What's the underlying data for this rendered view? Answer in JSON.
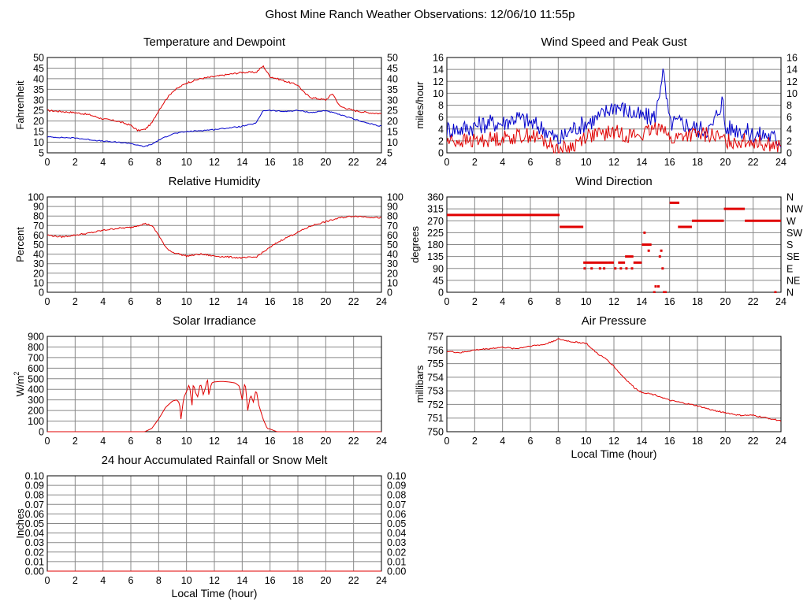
{
  "page_title": "Ghost Mine Ranch Weather Observations: 12/06/10 11:55p",
  "colors": {
    "red": "#e00000",
    "blue": "#0000cc",
    "grid": "#888888"
  },
  "chart_data": [
    {
      "id": "temp",
      "type": "line",
      "title": "Temperature and Dewpoint",
      "ylabel": "Fahrenheit",
      "xlabel": "",
      "xlim": [
        0,
        24
      ],
      "ylim": [
        5,
        50
      ],
      "xticks": [
        0,
        2,
        4,
        6,
        8,
        10,
        12,
        14,
        16,
        18,
        20,
        22,
        24
      ],
      "yticks": [
        5,
        10,
        15,
        20,
        25,
        30,
        35,
        40,
        45,
        50
      ],
      "right_ticks": [
        "5",
        "10",
        "15",
        "20",
        "25",
        "30",
        "35",
        "40",
        "45",
        "50"
      ],
      "grid": true,
      "series": [
        {
          "color": "red",
          "noise": 0.4,
          "x": [
            0,
            1,
            2,
            3,
            4,
            5,
            6,
            6.5,
            7,
            7.5,
            8,
            8.5,
            9,
            9.5,
            10,
            11,
            12,
            13,
            14,
            15,
            15.5,
            16,
            17,
            18,
            18.5,
            19,
            20,
            20.5,
            21,
            22,
            23,
            24
          ],
          "y": [
            25,
            24.5,
            24,
            23,
            21,
            20,
            18,
            15.5,
            16,
            19,
            25,
            30,
            34,
            36,
            38,
            40,
            41,
            42,
            43,
            43,
            46,
            41,
            39,
            37,
            33,
            31,
            30,
            33,
            27,
            25,
            24,
            23.5
          ]
        },
        {
          "color": "blue",
          "noise": 0.25,
          "x": [
            0,
            2,
            4,
            5,
            6,
            6.5,
            7,
            7.5,
            8,
            9,
            10,
            12,
            14,
            15,
            15.5,
            16,
            17,
            18,
            19,
            20,
            21,
            22,
            23,
            24
          ],
          "y": [
            12.5,
            12,
            10.5,
            10,
            9.5,
            8.5,
            8,
            9,
            11,
            14,
            15,
            16,
            17.5,
            19,
            25,
            25,
            24.5,
            25,
            24,
            25,
            23,
            21,
            19,
            17.5
          ]
        }
      ]
    },
    {
      "id": "wind",
      "type": "line",
      "title": "Wind Speed and Peak Gust",
      "ylabel": "miles/hour",
      "xlabel": "",
      "xlim": [
        0,
        24
      ],
      "ylim": [
        0,
        16
      ],
      "xticks": [
        0,
        2,
        4,
        6,
        8,
        10,
        12,
        14,
        16,
        18,
        20,
        22,
        24
      ],
      "yticks": [
        0,
        2,
        4,
        6,
        8,
        10,
        12,
        14,
        16
      ],
      "right_ticks": [
        "0",
        "2",
        "4",
        "6",
        "8",
        "10",
        "12",
        "14",
        "16"
      ],
      "grid": true,
      "series": [
        {
          "color": "blue",
          "noise": 1.6,
          "x": [
            0,
            1,
            2,
            3,
            4,
            5,
            6,
            7,
            8,
            8.5,
            9,
            10,
            11,
            12,
            13,
            14,
            15,
            15.5,
            16,
            17,
            18,
            19,
            19.8,
            20,
            21,
            22,
            23,
            24
          ],
          "y": [
            4,
            4,
            4.5,
            5,
            5,
            6,
            5,
            4,
            2,
            3,
            4,
            5,
            6,
            8,
            7,
            6,
            6,
            14,
            5,
            5,
            4,
            4,
            9,
            4,
            4,
            3,
            3,
            2
          ]
        },
        {
          "color": "red",
          "noise": 1.3,
          "x": [
            0,
            2,
            4,
            6,
            7,
            8,
            9,
            10,
            11,
            12,
            13,
            14,
            15,
            15.5,
            16,
            17,
            18,
            19,
            20,
            21,
            22,
            23,
            24
          ],
          "y": [
            2,
            2,
            2.5,
            3,
            2,
            0.5,
            1,
            3,
            3,
            3.5,
            3,
            3,
            4,
            5,
            2,
            3,
            3,
            3,
            2,
            2,
            2,
            1.5,
            1
          ]
        }
      ]
    },
    {
      "id": "rh",
      "type": "line",
      "title": "Relative Humidity",
      "ylabel": "Percent",
      "xlabel": "",
      "xlim": [
        0,
        24
      ],
      "ylim": [
        0,
        100
      ],
      "xticks": [
        0,
        2,
        4,
        6,
        8,
        10,
        12,
        14,
        16,
        18,
        20,
        22,
        24
      ],
      "yticks": [
        0,
        10,
        20,
        30,
        40,
        50,
        60,
        70,
        80,
        90,
        100
      ],
      "right_ticks": [
        "0",
        "10",
        "20",
        "30",
        "40",
        "50",
        "60",
        "70",
        "80",
        "90",
        "100"
      ],
      "grid": true,
      "series": [
        {
          "color": "red",
          "noise": 0.8,
          "x": [
            0,
            1,
            2,
            3,
            4,
            5,
            6,
            7,
            7.5,
            8,
            8.5,
            9,
            10,
            11,
            12,
            13,
            14,
            15,
            15.5,
            16,
            16.5,
            17,
            18,
            19,
            20,
            21,
            22,
            23,
            24
          ],
          "y": [
            60,
            58,
            60,
            62,
            65,
            67,
            68,
            72,
            70,
            60,
            47,
            42,
            38,
            40,
            38,
            37,
            36,
            37,
            42,
            47,
            52,
            56,
            63,
            70,
            74,
            78,
            80,
            79,
            78
          ]
        }
      ]
    },
    {
      "id": "winddir",
      "type": "scatter",
      "title": "Wind Direction",
      "ylabel": "degrees",
      "xlabel": "",
      "xlim": [
        0,
        24
      ],
      "ylim": [
        0,
        360
      ],
      "xticks": [
        0,
        2,
        4,
        6,
        8,
        10,
        12,
        14,
        16,
        18,
        20,
        22,
        24
      ],
      "yticks": [
        0,
        45,
        90,
        135,
        180,
        225,
        270,
        315,
        360
      ],
      "right_ticks": [
        "N",
        "NE",
        "E",
        "SE",
        "S",
        "SW",
        "W",
        "NW",
        "N"
      ],
      "grid": true,
      "segments": [
        [
          0,
          8.1,
          292
        ],
        [
          8.1,
          9.8,
          247
        ],
        [
          9.8,
          11.6,
          112
        ],
        [
          11.6,
          12.0,
          112
        ],
        [
          12.3,
          12.8,
          112
        ],
        [
          12.8,
          13.4,
          135
        ],
        [
          13.4,
          14.0,
          112
        ],
        [
          14.0,
          14.7,
          180
        ],
        [
          16.0,
          16.7,
          338
        ],
        [
          16.6,
          17.6,
          247
        ],
        [
          17.6,
          19.9,
          270
        ],
        [
          19.9,
          21.4,
          315
        ],
        [
          21.4,
          24,
          270
        ]
      ],
      "points": [
        [
          9.9,
          90
        ],
        [
          10.4,
          90
        ],
        [
          11.0,
          90
        ],
        [
          11.3,
          90
        ],
        [
          12.1,
          90
        ],
        [
          12.5,
          90
        ],
        [
          12.9,
          90
        ],
        [
          13.3,
          90
        ],
        [
          14.2,
          225
        ],
        [
          14.5,
          157
        ],
        [
          14.9,
          0
        ],
        [
          15.0,
          22
        ],
        [
          15.2,
          22
        ],
        [
          15.3,
          135
        ],
        [
          15.4,
          157
        ],
        [
          15.5,
          90
        ],
        [
          15.6,
          0
        ],
        [
          15.7,
          0
        ],
        [
          23.6,
          0
        ]
      ]
    },
    {
      "id": "solar",
      "type": "line",
      "title": "Solar Irradiance",
      "ylabel": "W/m",
      "ylabel_sup": "2",
      "xlabel": "",
      "xlim": [
        0,
        24
      ],
      "ylim": [
        0,
        900
      ],
      "xticks": [
        0,
        2,
        4,
        6,
        8,
        10,
        12,
        14,
        16,
        18,
        20,
        22,
        24
      ],
      "yticks": [
        0,
        100,
        200,
        300,
        400,
        500,
        600,
        700,
        800,
        900
      ],
      "right_ticks": [],
      "grid": true,
      "series": [
        {
          "color": "red",
          "noise": 0,
          "x": [
            0,
            7.0,
            7.5,
            8.0,
            8.5,
            9.0,
            9.3,
            9.5,
            9.6,
            9.8,
            10,
            10.2,
            10.4,
            10.5,
            10.6,
            10.8,
            11,
            11.2,
            11.4,
            11.5,
            11.6,
            11.8,
            12,
            12.5,
            13,
            13.5,
            13.8,
            14,
            14.2,
            14.4,
            14.6,
            14.8,
            15,
            15.2,
            15.5,
            15.8,
            16,
            16.5,
            17,
            24
          ],
          "y": [
            0,
            0,
            30,
            120,
            230,
            290,
            300,
            270,
            120,
            320,
            380,
            450,
            250,
            480,
            380,
            330,
            460,
            350,
            430,
            520,
            350,
            460,
            470,
            475,
            470,
            460,
            430,
            300,
            480,
            200,
            350,
            280,
            400,
            250,
            120,
            30,
            25,
            0,
            0,
            0
          ]
        }
      ]
    },
    {
      "id": "pressure",
      "type": "line",
      "title": "Air Pressure",
      "ylabel": "millibars",
      "xlabel": "Local Time (hour)",
      "xlim": [
        0,
        24
      ],
      "ylim": [
        750,
        757
      ],
      "xticks": [
        0,
        2,
        4,
        6,
        8,
        10,
        12,
        14,
        16,
        18,
        20,
        22,
        24
      ],
      "yticks": [
        750,
        751,
        752,
        753,
        754,
        755,
        756,
        757
      ],
      "right_ticks": [],
      "grid": true,
      "series": [
        {
          "color": "red",
          "noise": 0.05,
          "x": [
            0,
            1,
            2,
            3,
            4,
            5,
            6,
            7,
            8,
            9,
            10,
            10.5,
            11,
            11.5,
            12,
            12.5,
            13,
            13.5,
            14,
            15,
            16,
            17,
            18,
            19,
            20,
            21,
            22,
            23,
            24
          ],
          "y": [
            755.9,
            755.8,
            756.0,
            756.1,
            756.2,
            756.1,
            756.3,
            756.4,
            756.8,
            756.6,
            756.5,
            756.0,
            755.6,
            755.3,
            754.8,
            754.2,
            753.7,
            753.2,
            752.9,
            752.7,
            752.3,
            752.1,
            751.9,
            751.6,
            751.4,
            751.2,
            751.2,
            751.0,
            750.8
          ]
        }
      ]
    },
    {
      "id": "rain",
      "type": "line",
      "title": "24 hour Accumulated Rainfall or Snow Melt",
      "ylabel": "Inches",
      "xlabel": "Local Time (hour)",
      "xlim": [
        0,
        24
      ],
      "ylim": [
        0,
        0.1
      ],
      "xticks": [
        0,
        2,
        4,
        6,
        8,
        10,
        12,
        14,
        16,
        18,
        20,
        22,
        24
      ],
      "yticks": [
        0,
        0.01,
        0.02,
        0.03,
        0.04,
        0.05,
        0.06,
        0.07,
        0.08,
        0.09,
        0.1
      ],
      "ytick_labels": [
        "0.00",
        "0.01",
        "0.02",
        "0.03",
        "0.04",
        "0.05",
        "0.06",
        "0.07",
        "0.08",
        "0.09",
        "0.10"
      ],
      "right_ticks": [
        "0.00",
        "0.01",
        "0.02",
        "0.03",
        "0.04",
        "0.05",
        "0.06",
        "0.07",
        "0.08",
        "0.09",
        "0.10"
      ],
      "grid": true,
      "series": [
        {
          "color": "red",
          "noise": 0,
          "x": [
            0,
            24
          ],
          "y": [
            0,
            0
          ]
        }
      ]
    }
  ]
}
